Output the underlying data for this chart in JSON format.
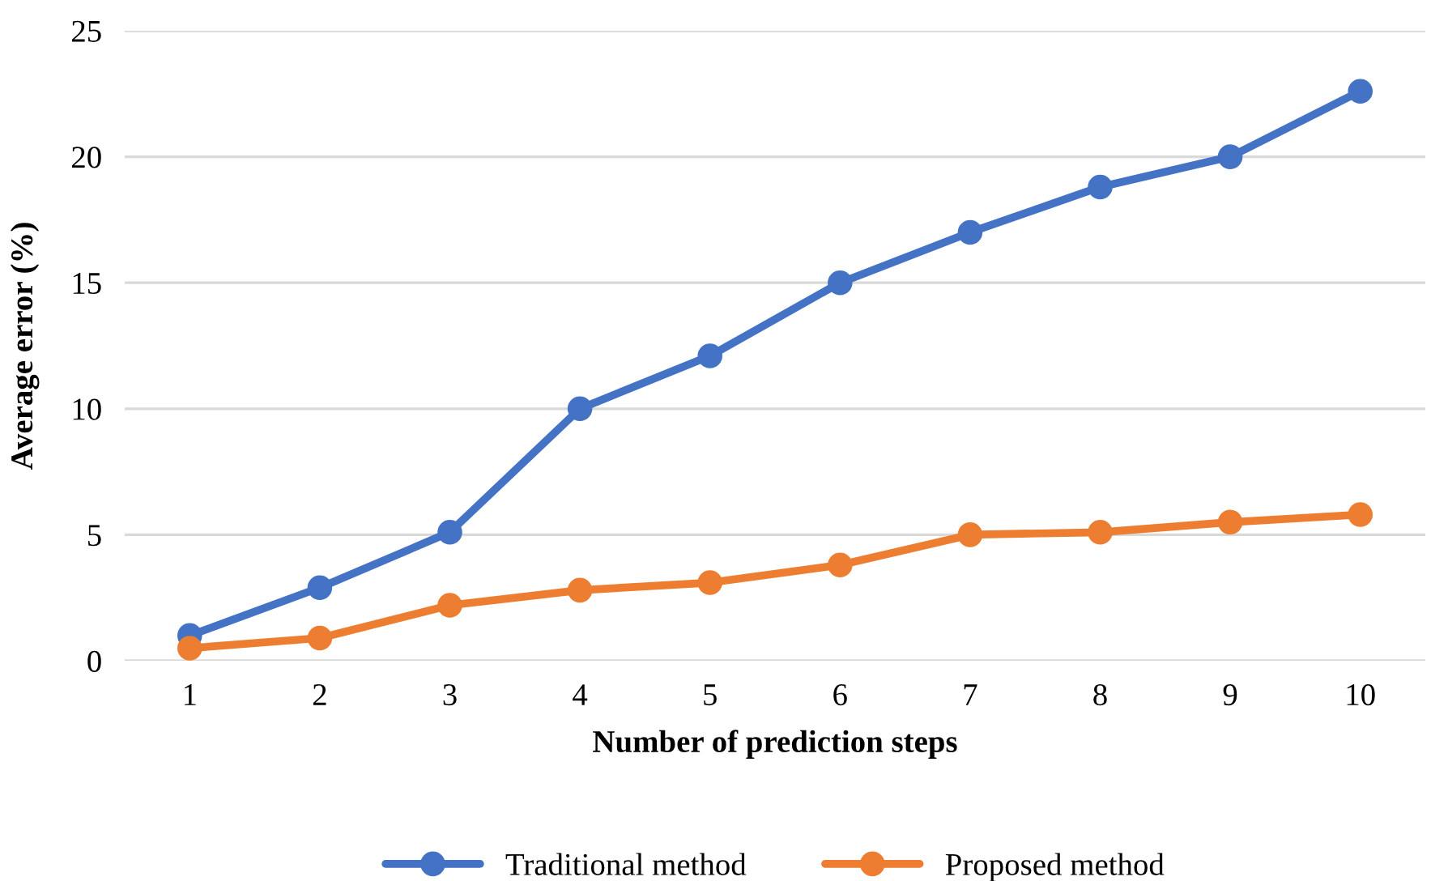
{
  "chart_data": {
    "type": "line",
    "xlabel": "Number of prediction steps",
    "ylabel": "Average error (%)",
    "categories": [
      "1",
      "2",
      "3",
      "4",
      "5",
      "6",
      "7",
      "8",
      "9",
      "10"
    ],
    "series": [
      {
        "name": "Traditional method",
        "color": "#4472c4",
        "values": [
          1.0,
          2.9,
          5.1,
          10.0,
          12.1,
          15.0,
          17.0,
          18.8,
          20.0,
          22.6
        ]
      },
      {
        "name": "Proposed method",
        "color": "#ed7d31",
        "values": [
          0.5,
          0.9,
          2.2,
          2.8,
          3.1,
          3.8,
          5.0,
          5.1,
          5.5,
          5.8
        ]
      }
    ],
    "ylim": [
      0,
      25
    ],
    "yticks": [
      0,
      5,
      10,
      15,
      20,
      25
    ],
    "grid": "y",
    "legend": "bottom",
    "marker": "circle",
    "line_style": "solid"
  }
}
